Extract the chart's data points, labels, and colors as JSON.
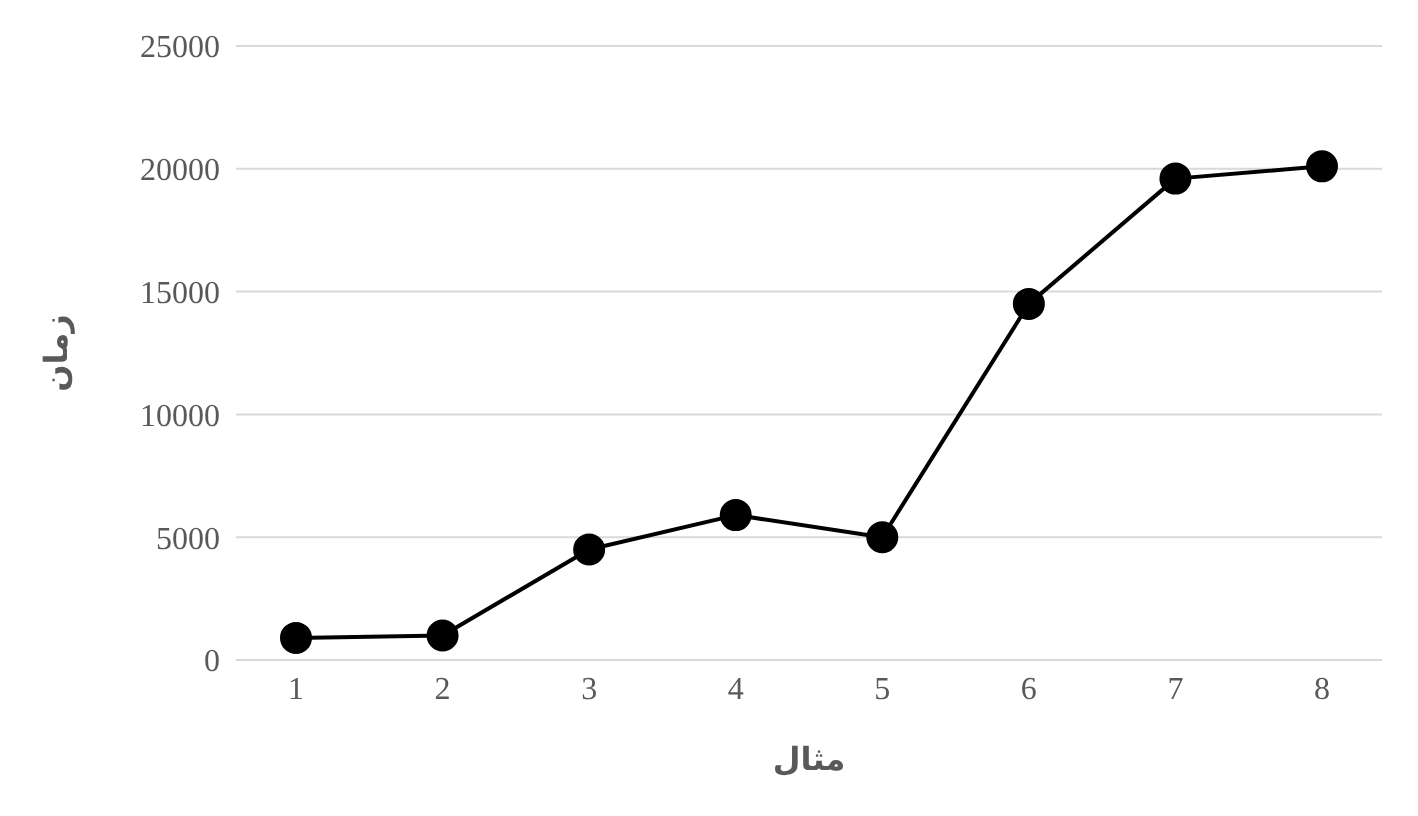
{
  "chart_data": {
    "type": "line",
    "xlabel": "مثال",
    "ylabel": "زمان",
    "categories": [
      "1",
      "2",
      "3",
      "4",
      "5",
      "6",
      "7",
      "8"
    ],
    "series": [
      {
        "color": "#000000",
        "values": [
          900,
          1000,
          4500,
          5900,
          5000,
          14500,
          19600,
          20100
        ]
      }
    ],
    "ylim": [
      0,
      25000
    ],
    "yticks": [
      0,
      5000,
      10000,
      15000,
      20000,
      25000
    ],
    "grid": "y",
    "marker": "circle",
    "line_style": "solid"
  }
}
